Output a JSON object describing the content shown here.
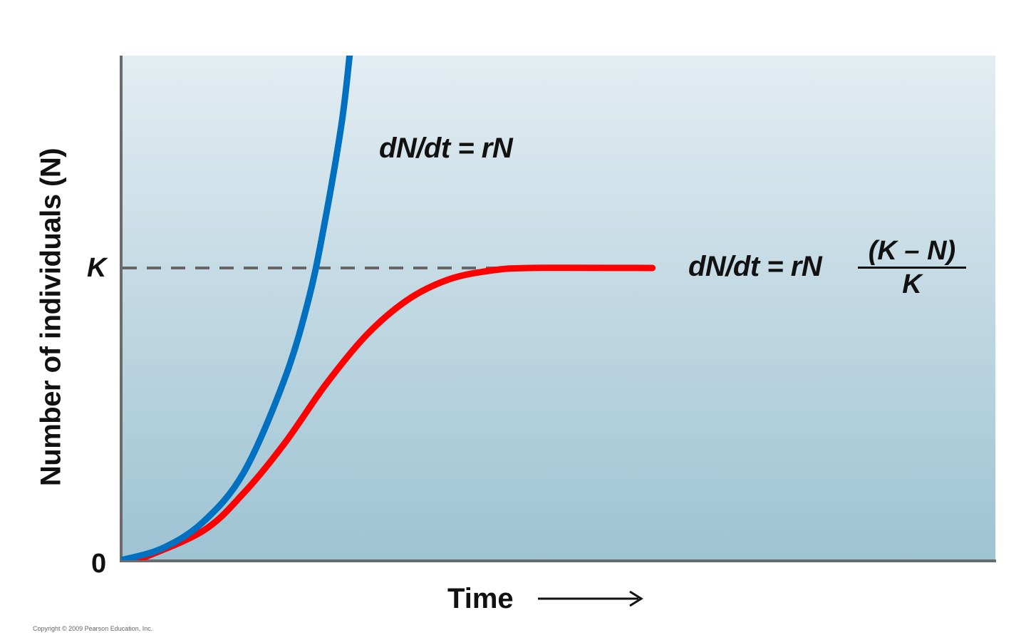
{
  "chart_data": {
    "type": "line",
    "title": "",
    "xlabel": "Time",
    "ylabel": "Number of individuals (N)",
    "x_axis_arrow": true,
    "y_ticks": [
      {
        "label": "0",
        "value": 0
      },
      {
        "label": "K",
        "value": 1
      }
    ],
    "xlim": [
      0,
      10
    ],
    "ylim": [
      0,
      1.74
    ],
    "grid": false,
    "legend": "none (curves labeled inline)",
    "reference_lines": [
      {
        "name": "carrying capacity",
        "label": "K",
        "y": 1,
        "style": "dashed",
        "color": "#666666"
      }
    ],
    "series": [
      {
        "name": "Exponential growth",
        "equation": "dN/dt = rN",
        "color": "#0070C0",
        "x": [
          0,
          0.5,
          1.0,
          1.5,
          2.0,
          2.3,
          2.5,
          2.7,
          2.8
        ],
        "y": [
          0,
          0.04,
          0.13,
          0.3,
          0.62,
          0.9,
          1.17,
          1.5,
          1.74
        ]
      },
      {
        "name": "Logistic growth",
        "equation": "dN/dt = rN (K − N)/K",
        "color": "#FF0000",
        "x": [
          0.2,
          1.0,
          1.5,
          2.0,
          2.5,
          3.0,
          3.5,
          4.0,
          4.5,
          5.0,
          6.5
        ],
        "y": [
          0,
          0.1,
          0.23,
          0.4,
          0.6,
          0.77,
          0.89,
          0.96,
          0.99,
          1.0,
          1.0
        ]
      }
    ],
    "annotations": [
      {
        "text": "dN/dt = rN",
        "near": "Exponential growth"
      },
      {
        "text": "dN/dt = rN (K − N)/K",
        "near": "Logistic growth"
      }
    ]
  },
  "labels": {
    "ylabel": "Number of individuals (N)",
    "xlabel": "Time",
    "tick_k": "K",
    "tick_0": "0",
    "eq_exponential": "dN/dt = rN",
    "eq_logistic_lhs": "dN/dt = rN",
    "eq_logistic_num": "(K – N)",
    "eq_logistic_den": "K",
    "copyright": "Copyright © 2009 Pearson Education, Inc."
  },
  "colors": {
    "plot_bg_top": "#E3EDF2",
    "plot_bg_bottom": "#9EC3D3",
    "axis": "#6B6B6B",
    "exponential": "#0070C0",
    "logistic": "#FF0000",
    "k_line": "#666666"
  }
}
